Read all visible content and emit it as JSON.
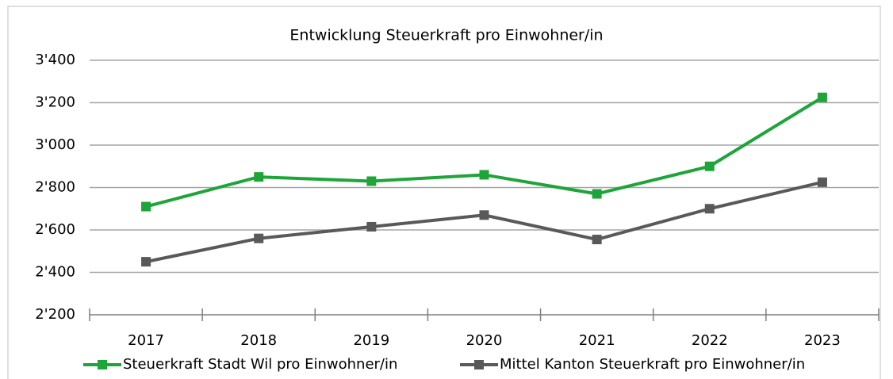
{
  "chart_data": {
    "type": "line",
    "title": "Entwicklung Steuerkraft  pro Einwohner/in",
    "categories": [
      "2017",
      "2018",
      "2019",
      "2020",
      "2021",
      "2022",
      "2023"
    ],
    "series": [
      {
        "name": "Steuerkraft Stadt Wil pro Einwohner/in",
        "color": "#1ea53a",
        "values": [
          2710,
          2850,
          2830,
          2860,
          2770,
          2900,
          3225
        ]
      },
      {
        "name": "Mittel Kanton Steuerkraft pro Einwohner/in",
        "color": "#595959",
        "values": [
          2450,
          2560,
          2615,
          2670,
          2555,
          2700,
          2825
        ]
      }
    ],
    "ylim": [
      2200,
      3400
    ],
    "yticks": [
      {
        "value": 2200,
        "label": "2'200"
      },
      {
        "value": 2400,
        "label": "2'400"
      },
      {
        "value": 2600,
        "label": "2'600"
      },
      {
        "value": 2800,
        "label": "2'800"
      },
      {
        "value": 3000,
        "label": "3'000"
      },
      {
        "value": 3200,
        "label": "3'200"
      },
      {
        "value": 3400,
        "label": "3'400"
      }
    ],
    "grid": true,
    "legend": "bottom"
  }
}
